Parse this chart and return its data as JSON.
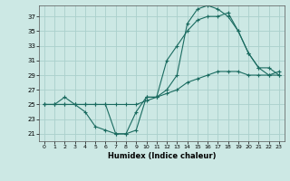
{
  "xlabel": "Humidex (Indice chaleur)",
  "ylabel": "",
  "background_color": "#cce8e4",
  "grid_color": "#aad0cc",
  "line_color": "#1a6b60",
  "xlim": [
    -0.5,
    23.5
  ],
  "ylim": [
    20,
    38.5
  ],
  "yticks": [
    21,
    23,
    25,
    27,
    29,
    31,
    33,
    35,
    37
  ],
  "xticks": [
    0,
    1,
    2,
    3,
    4,
    5,
    6,
    7,
    8,
    9,
    10,
    11,
    12,
    13,
    14,
    15,
    16,
    17,
    18,
    19,
    20,
    21,
    22,
    23
  ],
  "line1_x": [
    0,
    1,
    2,
    3,
    4,
    5,
    6,
    7,
    8,
    9,
    10,
    11,
    12,
    13,
    14,
    15,
    16,
    17,
    18,
    19,
    20,
    21,
    22,
    23
  ],
  "line1_y": [
    25,
    25,
    25,
    25,
    25,
    25,
    25,
    21,
    21,
    21.5,
    26,
    26,
    27,
    29,
    36,
    38,
    38.5,
    38,
    37,
    35,
    32,
    30,
    29,
    29.5
  ],
  "line2_x": [
    0,
    1,
    2,
    3,
    4,
    5,
    6,
    7,
    8,
    9,
    10,
    11,
    12,
    13,
    14,
    15,
    16,
    17,
    18,
    19,
    20,
    21,
    22,
    23
  ],
  "line2_y": [
    25,
    25,
    26,
    25,
    24,
    22,
    21.5,
    21,
    21,
    24,
    26,
    26,
    31,
    33,
    35,
    36.5,
    37,
    37,
    37.5,
    35,
    32,
    30,
    30,
    29
  ],
  "line3_x": [
    0,
    1,
    2,
    3,
    4,
    5,
    6,
    7,
    8,
    9,
    10,
    11,
    12,
    13,
    14,
    15,
    16,
    17,
    18,
    19,
    20,
    21,
    22,
    23
  ],
  "line3_y": [
    25,
    25,
    25,
    25,
    25,
    25,
    25,
    25,
    25,
    25,
    25.5,
    26,
    26.5,
    27,
    28,
    28.5,
    29,
    29.5,
    29.5,
    29.5,
    29,
    29,
    29,
    29
  ]
}
